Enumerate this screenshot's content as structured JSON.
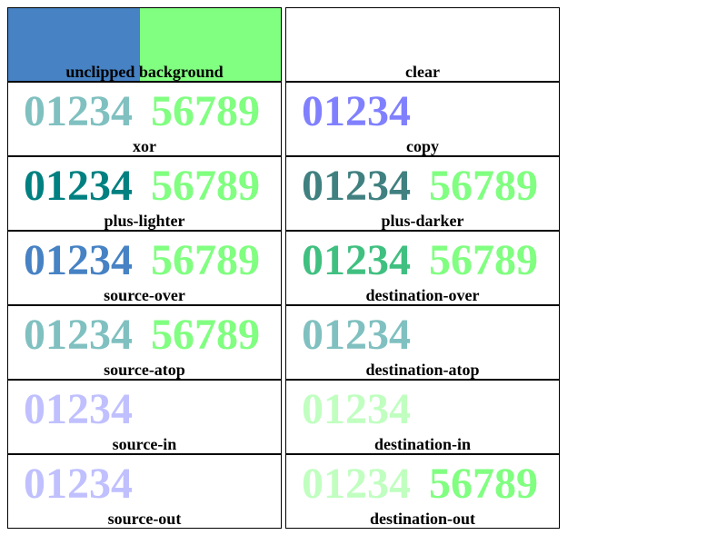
{
  "colors": {
    "blue": "#4682c4",
    "green": "#80ff80",
    "teal_light": "#80c0c0",
    "teal_dark": "#008080",
    "teal_mid": "#408080",
    "blue_violet": "#8080ff",
    "pale_blue": "#c0c0ff",
    "pale_green": "#c0ffc0",
    "green_mid": "#40c080"
  },
  "cells": [
    {
      "label": "unclipped background",
      "text1": "",
      "text2": ""
    },
    {
      "label": "clear",
      "text1": "",
      "text2": ""
    },
    {
      "label": "xor",
      "text1": "01234",
      "text2": "56789"
    },
    {
      "label": "copy",
      "text1": "01234",
      "text2": ""
    },
    {
      "label": "plus-lighter",
      "text1": "01234",
      "text2": "56789"
    },
    {
      "label": "plus-darker",
      "text1": "01234",
      "text2": "56789"
    },
    {
      "label": "source-over",
      "text1": "01234",
      "text2": "56789"
    },
    {
      "label": "destination-over",
      "text1": "01234",
      "text2": "56789"
    },
    {
      "label": "source-atop",
      "text1": "01234",
      "text2": "56789"
    },
    {
      "label": "destination-atop",
      "text1": "01234",
      "text2": ""
    },
    {
      "label": "source-in",
      "text1": "01234",
      "text2": ""
    },
    {
      "label": "destination-in",
      "text1": "01234",
      "text2": ""
    },
    {
      "label": "source-out",
      "text1": "01234",
      "text2": ""
    },
    {
      "label": "destination-out",
      "text1": "01234",
      "text2": "56789"
    }
  ]
}
